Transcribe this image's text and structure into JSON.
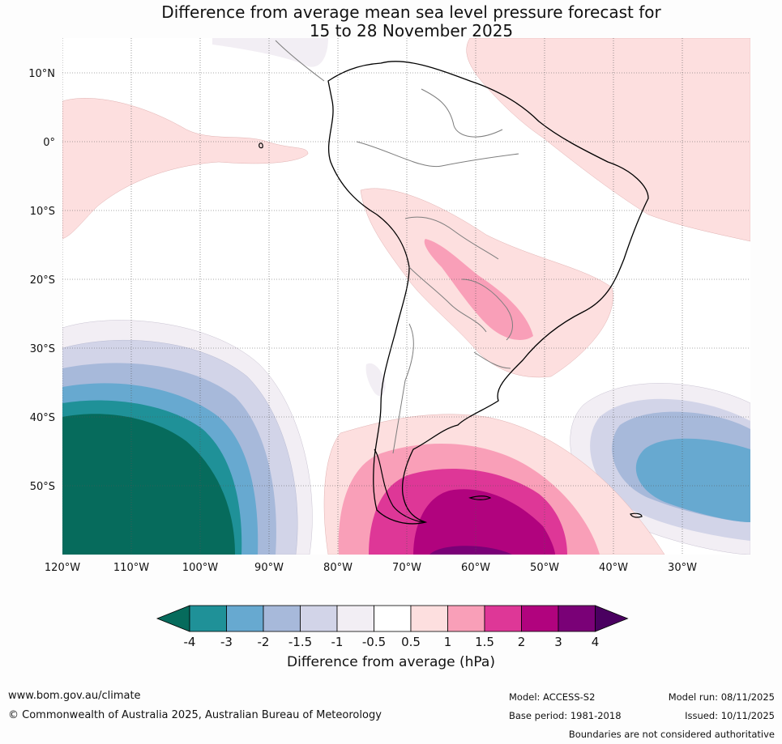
{
  "title": {
    "line1": "Difference from average mean sea level pressure forecast for",
    "line2": "15 to 28 November 2025"
  },
  "axes": {
    "lat_labels": [
      "10°N",
      "0°",
      "10°S",
      "20°S",
      "30°S",
      "40°S",
      "50°S"
    ],
    "lat_values": [
      10,
      0,
      -10,
      -20,
      -30,
      -40,
      -50
    ],
    "lon_labels": [
      "120°W",
      "110°W",
      "100°W",
      "90°W",
      "80°W",
      "70°W",
      "60°W",
      "50°W",
      "40°W",
      "30°W"
    ],
    "lon_values": [
      -120,
      -110,
      -100,
      -90,
      -80,
      -70,
      -60,
      -50,
      -40,
      -30
    ]
  },
  "colorbar": {
    "title": "Difference from average (hPa)",
    "tick_labels": [
      "-4",
      "-3",
      "-2",
      "-1.5",
      "-1",
      "-0.5",
      "0.5",
      "1",
      "1.5",
      "2",
      "3",
      "4"
    ],
    "colors": [
      "#066b5c",
      "#1f9198",
      "#67a9d0",
      "#a7b9da",
      "#d2d4e8",
      "#f2eef4",
      "#ffffff",
      "#fddfdf",
      "#f99fb8",
      "#de3797",
      "#b1037e",
      "#7a0177",
      "#4a0060"
    ]
  },
  "footer": {
    "url": "www.bom.gov.au/climate",
    "copyright": "© Commonwealth of Australia 2025, Australian Bureau of Meteorology",
    "model": "Model: ACCESS-S2",
    "base_period": "Base period: 1981-2018",
    "model_run": "Model run: 08/11/2025",
    "issued": "Issued: 10/11/2025",
    "disclaimer": "Boundaries are not considered authoritative"
  }
}
